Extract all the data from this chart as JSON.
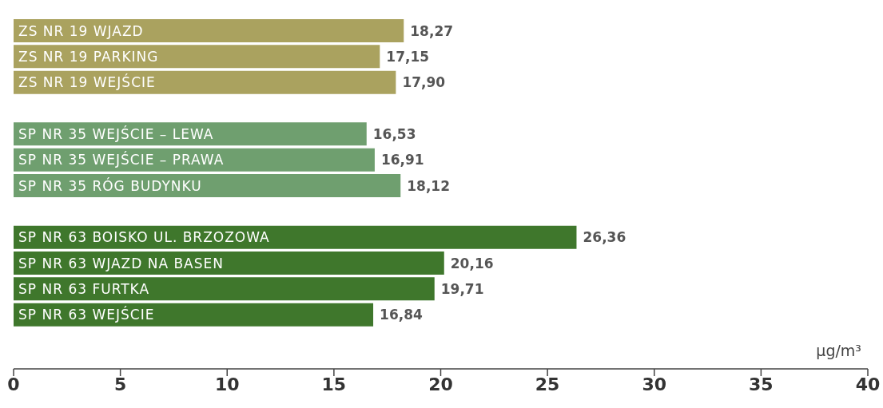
{
  "chart_data": {
    "type": "bar",
    "orientation": "horizontal",
    "xlabel": "µg/m³",
    "categories": [
      "ZS NR 19 WJAZD",
      "ZS NR 19 PARKING",
      "ZS NR 19 WEJŚCIE",
      null,
      "SP NR 35 WEJŚCIE – LEWA",
      "SP NR 35 WEJŚCIE – PRAWA",
      "SP NR 35 RÓG BUDYNKU",
      null,
      "SP NR 63 BOISKO UL. BRZOZOWA",
      "SP NR 63 WJAZD NA BASEN",
      "SP NR 63 FURTKA",
      "SP NR 63 WEJŚCIE"
    ],
    "values": [
      18.27,
      17.15,
      17.9,
      null,
      16.53,
      16.91,
      18.12,
      null,
      26.36,
      20.16,
      19.71,
      16.84
    ],
    "value_labels": [
      "18,27",
      "17,15",
      "17,90",
      null,
      "16,53",
      "16,91",
      "18,12",
      null,
      "26,36",
      "20,16",
      "19,71",
      "16,84"
    ],
    "colors": [
      "#aaa25f",
      "#aaa25f",
      "#aaa25f",
      "#ffffff",
      "#6f9f6f",
      "#6f9f6f",
      "#6f9f6f",
      "#ffffff",
      "#3f772c",
      "#3f772c",
      "#3f772c",
      "#3f772c"
    ],
    "xlim": [
      0,
      40
    ],
    "xticks": [
      0,
      5,
      10,
      15,
      20,
      25,
      30,
      35,
      40
    ],
    "grid": false,
    "legend": false
  }
}
